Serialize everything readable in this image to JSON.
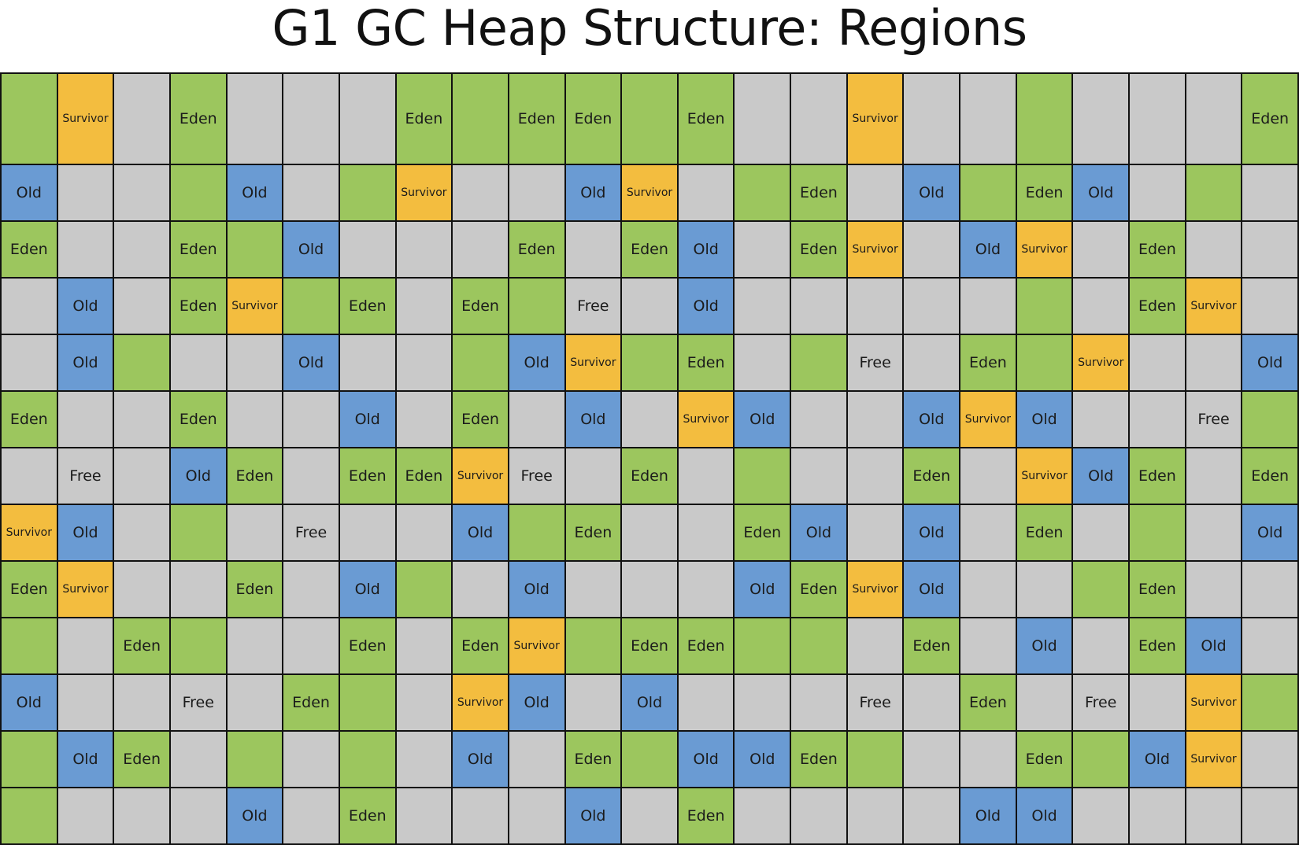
{
  "title": "G1 GC Heap Structure: Regions",
  "colors": {
    "eden": "#9cc65e",
    "survivor": "#f3bd3f",
    "old": "#6a9bd3",
    "free": "#c9c9c9",
    "grid_line": "#111111"
  },
  "rows": [
    [
      [
        "eden",
        ""
      ],
      [
        "survivor",
        "Survivor"
      ],
      [
        "free",
        ""
      ],
      [
        "eden",
        "Eden"
      ],
      [
        "free",
        ""
      ],
      [
        "free",
        ""
      ],
      [
        "free",
        ""
      ],
      [
        "eden",
        "Eden"
      ],
      [
        "eden",
        ""
      ],
      [
        "eden",
        "Eden"
      ],
      [
        "eden",
        "Eden"
      ],
      [
        "eden",
        ""
      ],
      [
        "eden",
        "Eden"
      ],
      [
        "free",
        ""
      ],
      [
        "free",
        ""
      ],
      [
        "survivor",
        "Survivor"
      ],
      [
        "free",
        ""
      ],
      [
        "free",
        ""
      ],
      [
        "eden",
        ""
      ],
      [
        "free",
        ""
      ],
      [
        "free",
        ""
      ],
      [
        "free",
        ""
      ],
      [
        "eden",
        "Eden"
      ]
    ],
    [
      [
        "old",
        "Old"
      ],
      [
        "free",
        ""
      ],
      [
        "free",
        ""
      ],
      [
        "eden",
        ""
      ],
      [
        "old",
        "Old"
      ],
      [
        "free",
        ""
      ],
      [
        "eden",
        ""
      ],
      [
        "survivor",
        "Survivor"
      ],
      [
        "free",
        ""
      ],
      [
        "free",
        ""
      ],
      [
        "old",
        "Old"
      ],
      [
        "survivor",
        "Survivor"
      ],
      [
        "free",
        ""
      ],
      [
        "eden",
        ""
      ],
      [
        "eden",
        "Eden"
      ],
      [
        "free",
        ""
      ],
      [
        "old",
        "Old"
      ],
      [
        "eden",
        ""
      ],
      [
        "eden",
        "Eden"
      ],
      [
        "old",
        "Old"
      ],
      [
        "free",
        ""
      ],
      [
        "eden",
        ""
      ],
      [
        "free",
        ""
      ]
    ],
    [
      [
        "eden",
        "Eden"
      ],
      [
        "free",
        ""
      ],
      [
        "free",
        ""
      ],
      [
        "eden",
        "Eden"
      ],
      [
        "eden",
        ""
      ],
      [
        "old",
        "Old"
      ],
      [
        "free",
        ""
      ],
      [
        "free",
        ""
      ],
      [
        "free",
        ""
      ],
      [
        "eden",
        "Eden"
      ],
      [
        "free",
        ""
      ],
      [
        "eden",
        "Eden"
      ],
      [
        "old",
        "Old"
      ],
      [
        "free",
        ""
      ],
      [
        "eden",
        "Eden"
      ],
      [
        "survivor",
        "Survivor"
      ],
      [
        "free",
        ""
      ],
      [
        "old",
        "Old"
      ],
      [
        "survivor",
        "Survivor"
      ],
      [
        "free",
        ""
      ],
      [
        "eden",
        "Eden"
      ],
      [
        "free",
        ""
      ],
      [
        "free",
        ""
      ]
    ],
    [
      [
        "free",
        ""
      ],
      [
        "old",
        "Old"
      ],
      [
        "free",
        ""
      ],
      [
        "eden",
        "Eden"
      ],
      [
        "survivor",
        "Survivor"
      ],
      [
        "eden",
        ""
      ],
      [
        "eden",
        "Eden"
      ],
      [
        "free",
        ""
      ],
      [
        "eden",
        "Eden"
      ],
      [
        "eden",
        ""
      ],
      [
        "free",
        "Free"
      ],
      [
        "free",
        ""
      ],
      [
        "old",
        "Old"
      ],
      [
        "free",
        ""
      ],
      [
        "free",
        ""
      ],
      [
        "free",
        ""
      ],
      [
        "free",
        ""
      ],
      [
        "free",
        ""
      ],
      [
        "eden",
        ""
      ],
      [
        "free",
        ""
      ],
      [
        "eden",
        "Eden"
      ],
      [
        "survivor",
        "Survivor"
      ],
      [
        "free",
        ""
      ]
    ],
    [
      [
        "free",
        ""
      ],
      [
        "old",
        "Old"
      ],
      [
        "eden",
        ""
      ],
      [
        "free",
        ""
      ],
      [
        "free",
        ""
      ],
      [
        "old",
        "Old"
      ],
      [
        "free",
        ""
      ],
      [
        "free",
        ""
      ],
      [
        "eden",
        ""
      ],
      [
        "old",
        "Old"
      ],
      [
        "survivor",
        "Survivor"
      ],
      [
        "eden",
        ""
      ],
      [
        "eden",
        "Eden"
      ],
      [
        "free",
        ""
      ],
      [
        "eden",
        ""
      ],
      [
        "free",
        "Free"
      ],
      [
        "free",
        ""
      ],
      [
        "eden",
        "Eden"
      ],
      [
        "eden",
        ""
      ],
      [
        "survivor",
        "Survivor"
      ],
      [
        "free",
        ""
      ],
      [
        "free",
        ""
      ],
      [
        "old",
        "Old"
      ]
    ],
    [
      [
        "eden",
        "Eden"
      ],
      [
        "free",
        ""
      ],
      [
        "free",
        ""
      ],
      [
        "eden",
        "Eden"
      ],
      [
        "free",
        ""
      ],
      [
        "free",
        ""
      ],
      [
        "old",
        "Old"
      ],
      [
        "free",
        ""
      ],
      [
        "eden",
        "Eden"
      ],
      [
        "free",
        ""
      ],
      [
        "old",
        "Old"
      ],
      [
        "free",
        ""
      ],
      [
        "survivor",
        "Survivor"
      ],
      [
        "old",
        "Old"
      ],
      [
        "free",
        ""
      ],
      [
        "free",
        ""
      ],
      [
        "old",
        "Old"
      ],
      [
        "survivor",
        "Survivor"
      ],
      [
        "old",
        "Old"
      ],
      [
        "free",
        ""
      ],
      [
        "free",
        ""
      ],
      [
        "free",
        "Free"
      ],
      [
        "eden",
        ""
      ]
    ],
    [
      [
        "free",
        ""
      ],
      [
        "free",
        "Free"
      ],
      [
        "free",
        ""
      ],
      [
        "old",
        "Old"
      ],
      [
        "eden",
        "Eden"
      ],
      [
        "free",
        ""
      ],
      [
        "eden",
        "Eden"
      ],
      [
        "eden",
        "Eden"
      ],
      [
        "survivor",
        "Survivor"
      ],
      [
        "free",
        "Free"
      ],
      [
        "free",
        ""
      ],
      [
        "eden",
        "Eden"
      ],
      [
        "free",
        ""
      ],
      [
        "eden",
        ""
      ],
      [
        "free",
        ""
      ],
      [
        "free",
        ""
      ],
      [
        "eden",
        "Eden"
      ],
      [
        "free",
        ""
      ],
      [
        "survivor",
        "Survivor"
      ],
      [
        "old",
        "Old"
      ],
      [
        "eden",
        "Eden"
      ],
      [
        "free",
        ""
      ],
      [
        "eden",
        "Eden"
      ]
    ],
    [
      [
        "survivor",
        "Survivor"
      ],
      [
        "old",
        "Old"
      ],
      [
        "free",
        ""
      ],
      [
        "eden",
        ""
      ],
      [
        "free",
        ""
      ],
      [
        "free",
        "Free"
      ],
      [
        "free",
        ""
      ],
      [
        "free",
        ""
      ],
      [
        "old",
        "Old"
      ],
      [
        "eden",
        ""
      ],
      [
        "eden",
        "Eden"
      ],
      [
        "free",
        ""
      ],
      [
        "free",
        ""
      ],
      [
        "eden",
        "Eden"
      ],
      [
        "old",
        "Old"
      ],
      [
        "free",
        ""
      ],
      [
        "old",
        "Old"
      ],
      [
        "free",
        ""
      ],
      [
        "eden",
        "Eden"
      ],
      [
        "free",
        ""
      ],
      [
        "eden",
        ""
      ],
      [
        "free",
        ""
      ],
      [
        "old",
        "Old"
      ]
    ],
    [
      [
        "eden",
        "Eden"
      ],
      [
        "survivor",
        "Survivor"
      ],
      [
        "free",
        ""
      ],
      [
        "free",
        ""
      ],
      [
        "eden",
        "Eden"
      ],
      [
        "free",
        ""
      ],
      [
        "old",
        "Old"
      ],
      [
        "eden",
        ""
      ],
      [
        "free",
        ""
      ],
      [
        "old",
        "Old"
      ],
      [
        "free",
        ""
      ],
      [
        "free",
        ""
      ],
      [
        "free",
        ""
      ],
      [
        "old",
        "Old"
      ],
      [
        "eden",
        "Eden"
      ],
      [
        "survivor",
        "Survivor"
      ],
      [
        "old",
        "Old"
      ],
      [
        "free",
        ""
      ],
      [
        "free",
        ""
      ],
      [
        "eden",
        ""
      ],
      [
        "eden",
        "Eden"
      ],
      [
        "free",
        ""
      ],
      [
        "free",
        ""
      ]
    ],
    [
      [
        "eden",
        ""
      ],
      [
        "free",
        ""
      ],
      [
        "eden",
        "Eden"
      ],
      [
        "eden",
        ""
      ],
      [
        "free",
        ""
      ],
      [
        "free",
        ""
      ],
      [
        "eden",
        "Eden"
      ],
      [
        "free",
        ""
      ],
      [
        "eden",
        "Eden"
      ],
      [
        "survivor",
        "Survivor"
      ],
      [
        "eden",
        ""
      ],
      [
        "eden",
        "Eden"
      ],
      [
        "eden",
        "Eden"
      ],
      [
        "eden",
        ""
      ],
      [
        "eden",
        ""
      ],
      [
        "free",
        ""
      ],
      [
        "eden",
        "Eden"
      ],
      [
        "free",
        ""
      ],
      [
        "old",
        "Old"
      ],
      [
        "free",
        ""
      ],
      [
        "eden",
        "Eden"
      ],
      [
        "old",
        "Old"
      ],
      [
        "free",
        ""
      ]
    ],
    [
      [
        "old",
        "Old"
      ],
      [
        "free",
        ""
      ],
      [
        "free",
        ""
      ],
      [
        "free",
        "Free"
      ],
      [
        "free",
        ""
      ],
      [
        "eden",
        "Eden"
      ],
      [
        "eden",
        ""
      ],
      [
        "free",
        ""
      ],
      [
        "survivor",
        "Survivor"
      ],
      [
        "old",
        "Old"
      ],
      [
        "free",
        ""
      ],
      [
        "old",
        "Old"
      ],
      [
        "free",
        ""
      ],
      [
        "free",
        ""
      ],
      [
        "free",
        ""
      ],
      [
        "free",
        "Free"
      ],
      [
        "free",
        ""
      ],
      [
        "eden",
        "Eden"
      ],
      [
        "free",
        ""
      ],
      [
        "free",
        "Free"
      ],
      [
        "free",
        ""
      ],
      [
        "survivor",
        "Survivor"
      ],
      [
        "eden",
        ""
      ]
    ],
    [
      [
        "eden",
        ""
      ],
      [
        "old",
        "Old"
      ],
      [
        "eden",
        "Eden"
      ],
      [
        "free",
        ""
      ],
      [
        "eden",
        ""
      ],
      [
        "free",
        ""
      ],
      [
        "eden",
        ""
      ],
      [
        "free",
        ""
      ],
      [
        "old",
        "Old"
      ],
      [
        "free",
        ""
      ],
      [
        "eden",
        "Eden"
      ],
      [
        "eden",
        ""
      ],
      [
        "old",
        "Old"
      ],
      [
        "old",
        "Old"
      ],
      [
        "eden",
        "Eden"
      ],
      [
        "eden",
        ""
      ],
      [
        "free",
        ""
      ],
      [
        "free",
        ""
      ],
      [
        "eden",
        "Eden"
      ],
      [
        "eden",
        ""
      ],
      [
        "old",
        "Old"
      ],
      [
        "survivor",
        "Survivor"
      ],
      [
        "free",
        ""
      ]
    ],
    [
      [
        "eden",
        ""
      ],
      [
        "free",
        ""
      ],
      [
        "free",
        ""
      ],
      [
        "free",
        ""
      ],
      [
        "old",
        "Old"
      ],
      [
        "free",
        ""
      ],
      [
        "eden",
        "Eden"
      ],
      [
        "free",
        ""
      ],
      [
        "free",
        ""
      ],
      [
        "free",
        ""
      ],
      [
        "old",
        "Old"
      ],
      [
        "free",
        ""
      ],
      [
        "eden",
        "Eden"
      ],
      [
        "free",
        ""
      ],
      [
        "free",
        ""
      ],
      [
        "free",
        ""
      ],
      [
        "free",
        ""
      ],
      [
        "old",
        "Old"
      ],
      [
        "old",
        "Old"
      ],
      [
        "free",
        ""
      ],
      [
        "free",
        ""
      ],
      [
        "free",
        ""
      ],
      [
        "free",
        ""
      ]
    ]
  ]
}
